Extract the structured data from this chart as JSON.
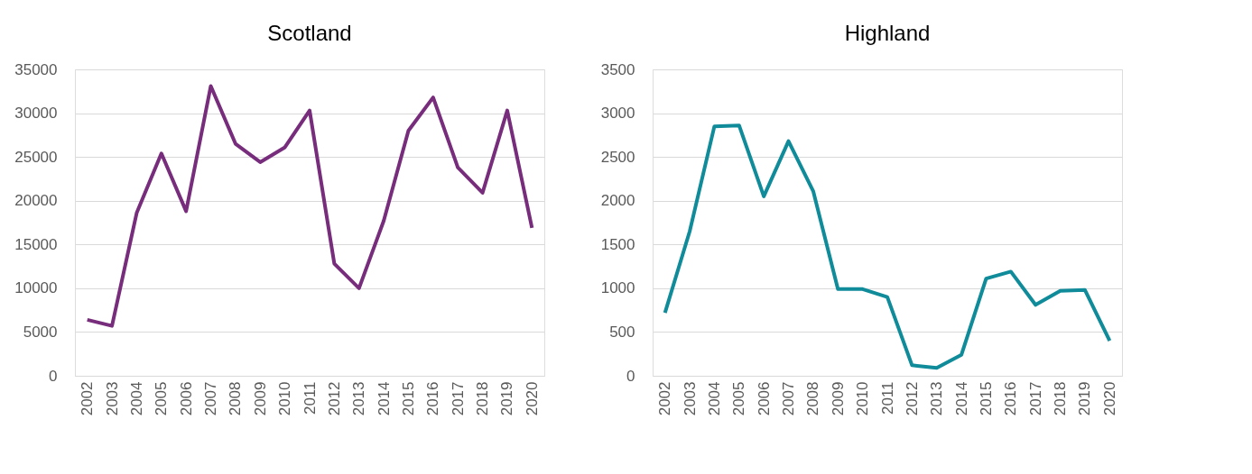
{
  "chart_data": [
    {
      "type": "line",
      "title": "Scotland",
      "categories": [
        "2002",
        "2003",
        "2004",
        "2005",
        "2006",
        "2007",
        "2008",
        "2009",
        "2010",
        "2011",
        "2012",
        "2013",
        "2014",
        "2015",
        "2016",
        "2017",
        "2018",
        "2019",
        "2020"
      ],
      "series": [
        {
          "color": "#772d7c",
          "values": [
            6400,
            5700,
            18600,
            25400,
            18800,
            33100,
            26500,
            24400,
            26100,
            30300,
            12800,
            10000,
            17700,
            28000,
            31800,
            23800,
            20900,
            30300,
            16900
          ]
        }
      ],
      "ylim": [
        0,
        35000
      ],
      "yticks": [
        0,
        5000,
        10000,
        15000,
        20000,
        25000,
        30000,
        35000
      ],
      "grid": "y",
      "legend": false,
      "marker": "none"
    },
    {
      "type": "line",
      "title": "Highland",
      "categories": [
        "2002",
        "2003",
        "2004",
        "2005",
        "2006",
        "2007",
        "2008",
        "2009",
        "2010",
        "2011",
        "2012",
        "2013",
        "2014",
        "2015",
        "2016",
        "2017",
        "2018",
        "2019",
        "2020"
      ],
      "series": [
        {
          "color": "#0f8b9a",
          "values": [
            720,
            1650,
            2850,
            2860,
            2050,
            2680,
            2110,
            990,
            990,
            900,
            120,
            90,
            240,
            1110,
            1190,
            810,
            970,
            980,
            400
          ]
        }
      ],
      "ylim": [
        0,
        3500
      ],
      "yticks": [
        0,
        500,
        1000,
        1500,
        2000,
        2500,
        3000,
        3500
      ],
      "grid": "y",
      "legend": false,
      "marker": "none"
    }
  ]
}
